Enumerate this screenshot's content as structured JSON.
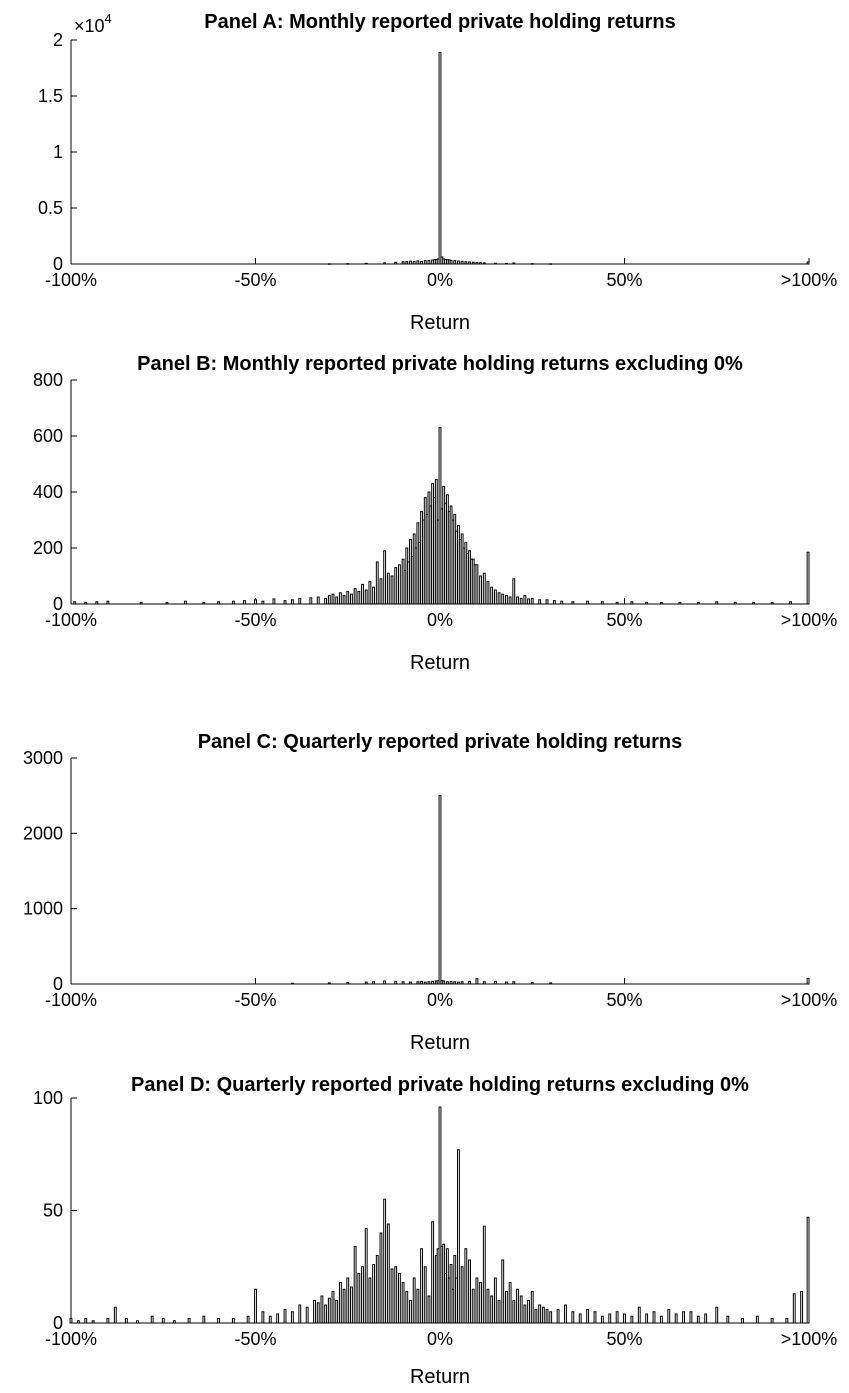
{
  "chart_data": [
    {
      "type": "bar",
      "title": "Panel A: Monthly reported private holding returns",
      "xlabel": "Return",
      "ylabel": "",
      "x_ticks": [
        "-100%",
        "-50%",
        "0%",
        "50%",
        ">100%"
      ],
      "y_ticks": [
        "0",
        "0.5",
        "1",
        "1.5",
        "2"
      ],
      "y_exponent_label": "×10",
      "y_exponent_power": "4",
      "xlim": [
        -100,
        100
      ],
      "ylim": [
        0,
        20000
      ],
      "bin_width_pct": 0.5,
      "x": [
        -30,
        -25,
        -20,
        -15,
        -12,
        -10,
        -9,
        -8,
        -7,
        -6,
        -5,
        -4,
        -3,
        -2,
        -1.5,
        -1,
        -0.5,
        0,
        0.5,
        1,
        1.5,
        2,
        2.5,
        3,
        4,
        5,
        6,
        7,
        8,
        9,
        10,
        11,
        12,
        15,
        18,
        20,
        25,
        30,
        100
      ],
      "values": [
        20,
        30,
        60,
        100,
        150,
        200,
        220,
        250,
        220,
        280,
        230,
        300,
        320,
        350,
        380,
        400,
        450,
        18900,
        630,
        450,
        400,
        390,
        360,
        330,
        300,
        260,
        240,
        200,
        180,
        160,
        140,
        120,
        100,
        70,
        50,
        90,
        30,
        20,
        180
      ]
    },
    {
      "type": "bar",
      "title": "Panel B: Monthly reported private holding returns excluding 0%",
      "xlabel": "Return",
      "ylabel": "",
      "x_ticks": [
        "-100%",
        "-50%",
        "0%",
        "50%",
        ">100%"
      ],
      "y_ticks": [
        "0",
        "200",
        "400",
        "600",
        "800"
      ],
      "xlim": [
        -100,
        100
      ],
      "ylim": [
        0,
        800
      ],
      "bin_width_pct": 0.5,
      "x": [
        -99,
        -96,
        -93,
        -90,
        -81,
        -74,
        -69,
        -64,
        -60,
        -56,
        -53,
        -50,
        -48,
        -45,
        -42,
        -40,
        -38,
        -35,
        -33,
        -31,
        -30,
        -29,
        -28,
        -27,
        -26,
        -25,
        -24,
        -23,
        -22,
        -21,
        -20,
        -19,
        -18,
        -17,
        -16,
        -15,
        -14,
        -13,
        -12,
        -11,
        -10,
        -9.5,
        -9,
        -8.5,
        -8,
        -7.5,
        -7,
        -6.5,
        -6,
        -5.5,
        -5,
        -4.5,
        -4,
        -3.5,
        -3,
        -2.5,
        -2,
        -1.5,
        -1,
        -0.5,
        0,
        0.5,
        1,
        1.5,
        2,
        2.5,
        3,
        3.5,
        4,
        4.5,
        5,
        5.5,
        6,
        6.5,
        7,
        7.5,
        8,
        8.5,
        9,
        9.5,
        10,
        11,
        12,
        13,
        14,
        15,
        16,
        17,
        18,
        19,
        20,
        21,
        22,
        23,
        24,
        25,
        27,
        29,
        31,
        33,
        36,
        40,
        44,
        48,
        52,
        56,
        60,
        65,
        70,
        75,
        80,
        85,
        90,
        95,
        100
      ],
      "values": [
        8,
        6,
        8,
        10,
        6,
        5,
        10,
        5,
        8,
        10,
        12,
        15,
        10,
        18,
        12,
        15,
        20,
        22,
        25,
        20,
        30,
        35,
        25,
        40,
        30,
        45,
        35,
        55,
        45,
        70,
        50,
        80,
        60,
        150,
        90,
        190,
        110,
        100,
        130,
        140,
        160,
        120,
        200,
        150,
        230,
        170,
        250,
        200,
        290,
        220,
        330,
        300,
        380,
        320,
        400,
        350,
        430,
        380,
        445,
        300,
        630,
        340,
        420,
        360,
        390,
        330,
        350,
        300,
        320,
        260,
        280,
        230,
        250,
        200,
        220,
        180,
        190,
        160,
        160,
        140,
        140,
        100,
        110,
        80,
        60,
        50,
        40,
        35,
        30,
        25,
        90,
        25,
        20,
        30,
        18,
        20,
        15,
        15,
        12,
        10,
        8,
        10,
        8,
        6,
        8,
        6,
        5,
        6,
        5,
        8,
        6,
        5,
        5,
        8,
        185
      ]
    },
    {
      "type": "bar",
      "title": "Panel C: Quarterly reported private holding returns",
      "xlabel": "Return",
      "ylabel": "",
      "x_ticks": [
        "-100%",
        "-50%",
        "0%",
        "50%",
        ">100%"
      ],
      "y_ticks": [
        "0",
        "1000",
        "2000",
        "3000"
      ],
      "xlim": [
        -100,
        100
      ],
      "ylim": [
        0,
        3000
      ],
      "bin_width_pct": 0.5,
      "x": [
        -40,
        -30,
        -25,
        -20,
        -18,
        -15,
        -12,
        -10,
        -8,
        -6,
        -5,
        -4,
        -3,
        -2,
        -1,
        -0.5,
        0,
        0.5,
        1,
        2,
        3,
        4,
        5,
        6,
        8,
        10,
        12,
        15,
        18,
        20,
        25,
        30,
        100
      ],
      "values": [
        10,
        15,
        20,
        25,
        30,
        40,
        35,
        30,
        25,
        30,
        35,
        25,
        30,
        35,
        40,
        45,
        2500,
        45,
        40,
        30,
        35,
        30,
        25,
        30,
        35,
        70,
        30,
        35,
        25,
        30,
        20,
        15,
        75
      ]
    },
    {
      "type": "bar",
      "title": "Panel D: Quarterly reported private holding returns excluding 0%",
      "xlabel": "Return",
      "ylabel": "",
      "x_ticks": [
        "-100%",
        "-50%",
        "0%",
        "50%",
        ">100%"
      ],
      "y_ticks": [
        "0",
        "50",
        "100"
      ],
      "xlim": [
        -100,
        100
      ],
      "ylim": [
        0,
        100
      ],
      "bin_width_pct": 0.5,
      "x": [
        -100,
        -98,
        -96,
        -94,
        -90,
        -88,
        -85,
        -82,
        -78,
        -75,
        -72,
        -68,
        -64,
        -60,
        -56,
        -52,
        -50,
        -48,
        -46,
        -44,
        -42,
        -40,
        -38,
        -36,
        -34,
        -33,
        -32,
        -31,
        -30,
        -29,
        -28,
        -27,
        -26,
        -25,
        -24,
        -23,
        -22,
        -21,
        -20,
        -19,
        -18,
        -17,
        -16,
        -15,
        -14,
        -13,
        -12,
        -11,
        -10,
        -9,
        -8,
        -7,
        -6,
        -5,
        -4,
        -3,
        -2,
        -1,
        -0.5,
        0,
        0.5,
        1,
        1.5,
        2,
        2.5,
        3,
        3.5,
        4,
        4.5,
        5,
        6,
        7,
        8,
        9,
        10,
        11,
        12,
        13,
        14,
        15,
        16,
        17,
        18,
        19,
        20,
        21,
        22,
        23,
        24,
        25,
        26,
        27,
        28,
        29,
        30,
        32,
        34,
        36,
        38,
        40,
        42,
        44,
        46,
        48,
        50,
        52,
        54,
        56,
        58,
        60,
        62,
        64,
        66,
        68,
        70,
        72,
        75,
        78,
        82,
        86,
        90,
        94,
        96,
        98,
        100
      ],
      "values": [
        2,
        1,
        2,
        1,
        2,
        7,
        2,
        1,
        3,
        2,
        1,
        2,
        3,
        2,
        2,
        3,
        15,
        5,
        3,
        4,
        6,
        5,
        8,
        7,
        10,
        9,
        12,
        8,
        11,
        14,
        10,
        18,
        15,
        20,
        16,
        34,
        22,
        25,
        42,
        20,
        26,
        30,
        40,
        55,
        44,
        24,
        25,
        22,
        18,
        14,
        10,
        20,
        15,
        33,
        25,
        12,
        45,
        30,
        33,
        96,
        34,
        35,
        22,
        33,
        20,
        26,
        15,
        30,
        20,
        77,
        25,
        33,
        28,
        15,
        20,
        18,
        43,
        15,
        12,
        20,
        10,
        28,
        14,
        18,
        10,
        15,
        12,
        8,
        10,
        14,
        6,
        8,
        7,
        6,
        5,
        6,
        8,
        5,
        4,
        6,
        5,
        3,
        4,
        5,
        4,
        3,
        7,
        4,
        5,
        3,
        6,
        4,
        5,
        5,
        3,
        4,
        7,
        3,
        2,
        3,
        2,
        2,
        13,
        14,
        47
      ]
    }
  ]
}
